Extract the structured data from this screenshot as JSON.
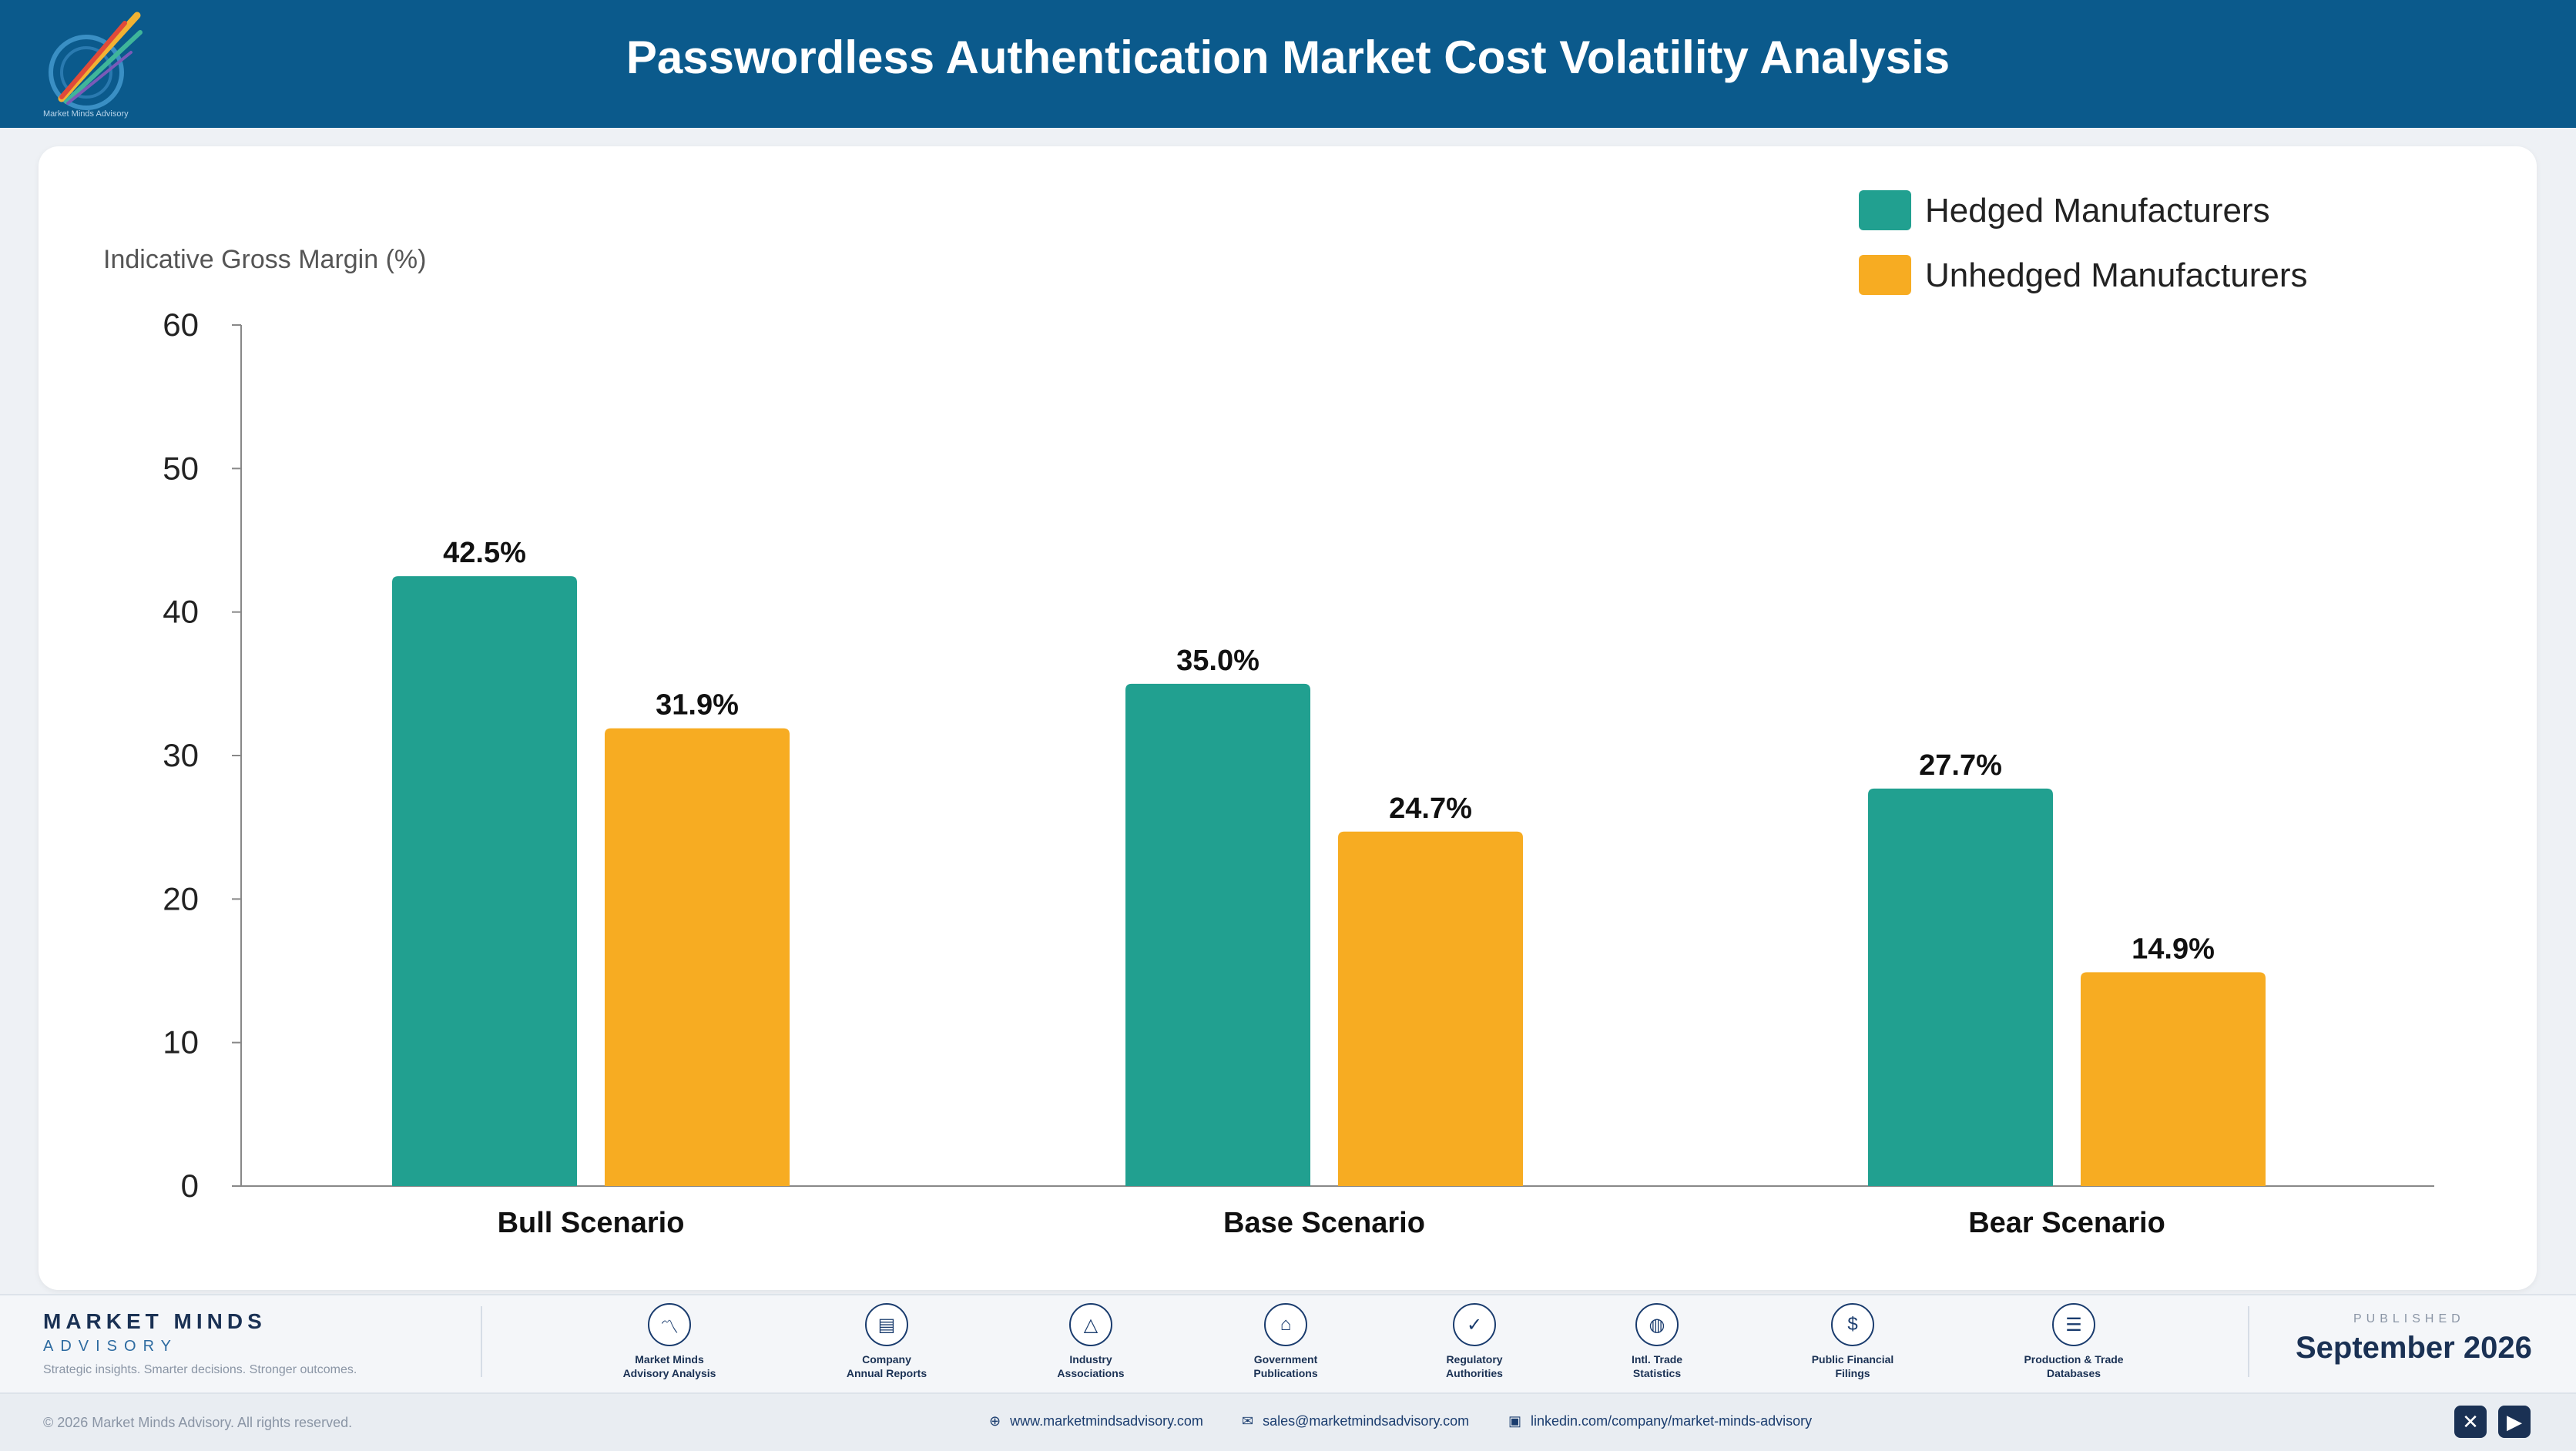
{
  "header": {
    "title": "Passwordless Authentication Market Cost Volatility Analysis",
    "logo_text": "Market Minds Advisory"
  },
  "chart_data": {
    "type": "bar",
    "title": "Passwordless Authentication Market Cost Volatility Analysis",
    "ylabel": "Indicative Gross Margin (%)",
    "xlabel": "",
    "ylim": [
      0,
      60
    ],
    "yticks": [
      0,
      10,
      20,
      30,
      40,
      50,
      60
    ],
    "grid": false,
    "legend_position": "top-right",
    "categories": [
      "Bull Scenario",
      "Base Scenario",
      "Bear Scenario"
    ],
    "series": [
      {
        "name": "Hedged Manufacturers",
        "color": "#21a090",
        "values": [
          42.5,
          35.0,
          27.7
        ],
        "labels": [
          "42.5%",
          "35.0%",
          "27.7%"
        ]
      },
      {
        "name": "Unhedged Manufacturers",
        "color": "#f7ac22",
        "values": [
          31.9,
          24.7,
          14.9
        ],
        "labels": [
          "31.9%",
          "24.7%",
          "14.9%"
        ]
      }
    ]
  },
  "footer": {
    "brand_name": "MARKET MINDS",
    "brand_sub": "ADVISORY",
    "tagline": "Strategic insights. Smarter decisions. Stronger outcomes.",
    "sources": [
      {
        "line1": "Market Minds",
        "line2": "Advisory Analysis",
        "icon": "trend-line-icon"
      },
      {
        "line1": "Company",
        "line2": "Annual Reports",
        "icon": "document-icon"
      },
      {
        "line1": "Industry",
        "line2": "Associations",
        "icon": "network-icon"
      },
      {
        "line1": "Government",
        "line2": "Publications",
        "icon": "government-building-icon"
      },
      {
        "line1": "Regulatory",
        "line2": "Authorities",
        "icon": "shield-check-icon"
      },
      {
        "line1": "Intl. Trade",
        "line2": "Statistics",
        "icon": "globe-icon"
      },
      {
        "line1": "Public Financial",
        "line2": "Filings",
        "icon": "dollar-coin-icon"
      },
      {
        "line1": "Production & Trade",
        "line2": "Databases",
        "icon": "database-icon"
      }
    ],
    "published_label": "PUBLISHED",
    "published_date": "September 2026"
  },
  "bottom_bar": {
    "copyright": "© 2026 Market Minds Advisory. All rights reserved.",
    "website": "www.marketmindsadvisory.com",
    "email": "sales@marketmindsadvisory.com",
    "linkedin": "linkedin.com/company/market-minds-advisory"
  }
}
